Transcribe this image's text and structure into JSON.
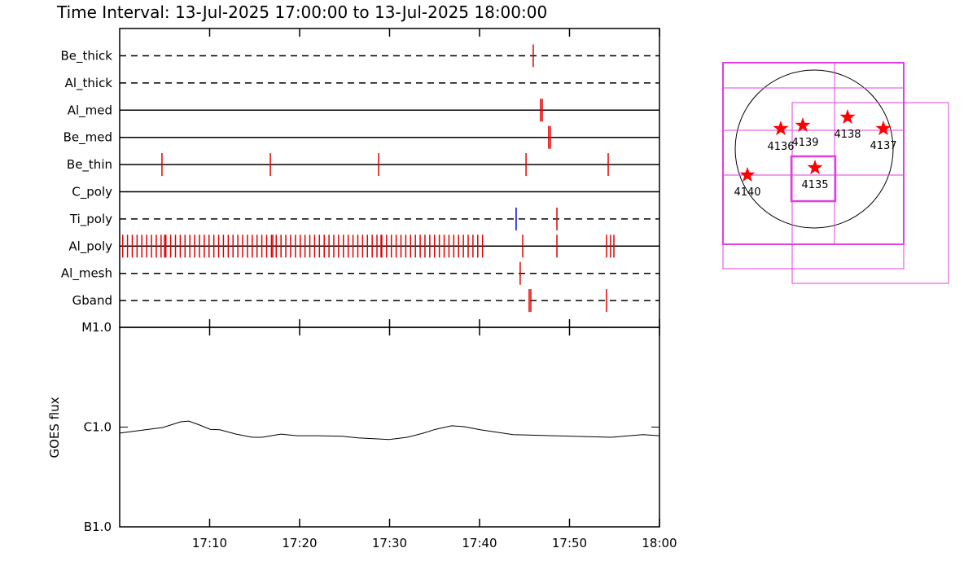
{
  "chart_data": [
    {
      "type": "timeline",
      "title": "Time Interval: 13-Jul-2025 17:00:00 to 13-Jul-2025 18:00:00",
      "xlim": [
        "17:00:00",
        "18:00:00"
      ],
      "color": "#e00000",
      "rows": [
        {
          "name": "Be_thick",
          "style": "dashed",
          "events": [
            "17:45:58"
          ]
        },
        {
          "name": "Al_thick",
          "style": "dashed",
          "events": []
        },
        {
          "name": "Al_med",
          "style": "solid",
          "events": [
            "17:46:47",
            "17:46:58"
          ]
        },
        {
          "name": "Be_med",
          "style": "solid",
          "events": [
            "17:47:41",
            "17:47:52"
          ]
        },
        {
          "name": "Be_thin",
          "style": "solid",
          "events": [
            "17:04:42",
            "17:16:45",
            "17:28:47",
            "17:45:10",
            "17:54:18"
          ]
        },
        {
          "name": "C_poly",
          "style": "solid",
          "events": []
        },
        {
          "name": "Ti_poly",
          "style": "dashed",
          "events": [
            "17:48:36"
          ],
          "events_alt": [
            "17:44:04"
          ],
          "color_alt": "#0000e0"
        },
        {
          "name": "Al_poly",
          "style": "solid",
          "events": [
            "17:00:20",
            "17:00:52",
            "17:01:24",
            "17:01:56",
            "17:02:28",
            "17:03:00",
            "17:03:32",
            "17:04:04",
            "17:04:36",
            "17:05:08",
            "17:05:40",
            "17:06:12",
            "17:06:44",
            "17:07:16",
            "17:07:48",
            "17:08:20",
            "17:08:52",
            "17:09:24",
            "17:09:56",
            "17:10:28",
            "17:11:00",
            "17:11:32",
            "17:12:04",
            "17:12:36",
            "17:13:08",
            "17:13:40",
            "17:14:12",
            "17:14:44",
            "17:15:16",
            "17:15:48",
            "17:16:20",
            "17:16:52",
            "17:17:24",
            "17:17:56",
            "17:18:28",
            "17:19:00",
            "17:19:32",
            "17:20:04",
            "17:20:36",
            "17:21:08",
            "17:21:40",
            "17:22:12",
            "17:22:44",
            "17:23:16",
            "17:23:48",
            "17:24:20",
            "17:24:52",
            "17:25:24",
            "17:25:56",
            "17:26:28",
            "17:27:00",
            "17:27:32",
            "17:28:04",
            "17:28:36",
            "17:29:08",
            "17:29:40",
            "17:30:12",
            "17:30:44",
            "17:31:16",
            "17:31:48",
            "17:32:20",
            "17:32:52",
            "17:33:24",
            "17:33:56",
            "17:34:28",
            "17:35:00",
            "17:35:32",
            "17:36:04",
            "17:36:36",
            "17:37:08",
            "17:37:40",
            "17:38:12",
            "17:38:44",
            "17:39:16",
            "17:39:48",
            "17:40:20",
            "17:04:59",
            "17:17:01",
            "17:29:03",
            "17:44:48",
            "17:48:36",
            "17:54:07",
            "17:54:34",
            "17:54:56"
          ]
        },
        {
          "name": "Al_mesh",
          "style": "dashed",
          "events": [
            "17:44:31"
          ]
        },
        {
          "name": "Gband",
          "style": "dashed",
          "events": [
            "17:45:31",
            "17:45:42",
            "17:54:07"
          ]
        }
      ]
    },
    {
      "type": "line",
      "ylabel": "GOES flux",
      "color": "#000000",
      "ylog": true,
      "ylim": [
        1e-07,
        1e-05
      ],
      "yticks": [
        {
          "value": 1e-05,
          "label": "M1.0"
        },
        {
          "value": 1e-06,
          "label": "C1.0"
        },
        {
          "value": 1e-07,
          "label": "B1.0"
        }
      ],
      "xlim": [
        "17:00:00",
        "18:00:00"
      ],
      "xticks": [
        {
          "value": "17:10:00",
          "label": "17:10"
        },
        {
          "value": "17:20:00",
          "label": "17:20"
        },
        {
          "value": "17:30:00",
          "label": "17:30"
        },
        {
          "value": "17:40:00",
          "label": "17:40"
        },
        {
          "value": "17:50:00",
          "label": "17:50"
        },
        {
          "value": "18:00:00",
          "label": "18:00"
        }
      ],
      "x": [
        "17:00:00",
        "17:04:48",
        "17:06:47",
        "17:07:41",
        "17:08:52",
        "17:10:03",
        "17:11:08",
        "17:12:56",
        "17:14:45",
        "17:15:50",
        "17:17:55",
        "17:19:44",
        "17:21:59",
        "17:24:43",
        "17:26:31",
        "17:29:57",
        "17:31:57",
        "17:33:46",
        "17:35:07",
        "17:36:55",
        "17:38:17",
        "17:40:05",
        "17:43:43",
        "17:48:14",
        "17:54:34",
        "17:58:11",
        "18:00:00"
      ],
      "values": [
        8.7e-07,
        9.9e-07,
        1.13e-06,
        1.15e-06,
        1.05e-06,
        9.5e-07,
        9.4e-07,
        8.5e-07,
        7.9e-07,
        7.9e-07,
        8.5e-07,
        8.2e-07,
        8.2e-07,
        8.1e-07,
        7.8e-07,
        7.5e-07,
        7.9e-07,
        8.7e-07,
        9.5e-07,
        1.03e-06,
        1.01e-06,
        9.4e-07,
        8.4e-07,
        8.2e-07,
        7.9e-07,
        8.4e-07,
        8.2e-07
      ]
    }
  ],
  "map": {
    "regions": [
      "4136",
      "4139",
      "4138",
      "4137",
      "4135",
      "4140"
    ]
  }
}
